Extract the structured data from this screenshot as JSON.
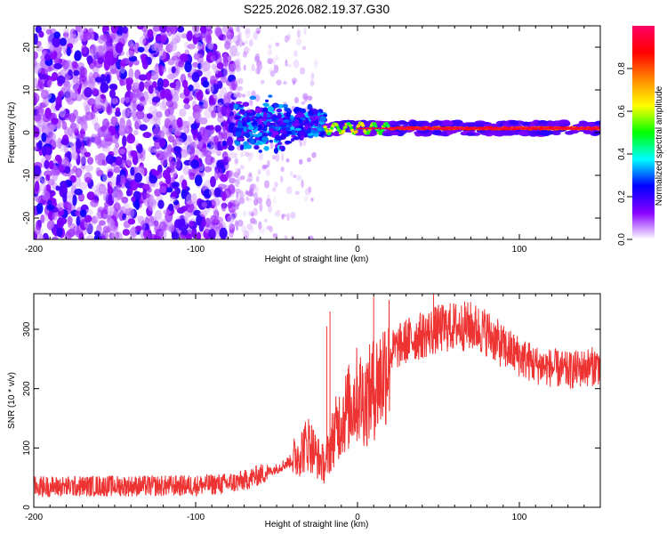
{
  "title": "S225.2026.082.19.37.G30",
  "chart_data": [
    {
      "type": "heatmap",
      "name": "spectrogram",
      "xlabel": "Height of straight line (km)",
      "ylabel": "Frequency (Hz)",
      "xlim": [
        -200,
        150
      ],
      "ylim": [
        -25,
        25
      ],
      "xticks": [
        -200,
        -100,
        0,
        100
      ],
      "yticks": [
        -20,
        -10,
        0,
        10,
        20
      ],
      "colorbar": {
        "label": "Normalized spectral amplitude",
        "range": [
          0,
          1
        ],
        "ticks": [
          "0.0",
          "0.2",
          "0.4",
          "0.6",
          "0.8"
        ],
        "tick_values": [
          0.0,
          0.2,
          0.4,
          0.6,
          0.8
        ],
        "colors": [
          "#ffffff",
          "#8800ff",
          "#0000ff",
          "#00ffff",
          "#00ff00",
          "#ffff00",
          "#ff8800",
          "#ff0000",
          "#ff0066"
        ]
      },
      "regions": [
        {
          "name": "noise",
          "x_range": [
            -200,
            -75
          ],
          "freq_range": [
            -25,
            25
          ],
          "amplitude": 0.1
        },
        {
          "name": "sparse-noise",
          "x_range": [
            -75,
            -25
          ],
          "freq_range": [
            -25,
            25
          ],
          "amplitude": 0.05
        },
        {
          "name": "onset",
          "x_range": [
            -75,
            -20
          ],
          "freq_center": 2,
          "freq_spread": 6,
          "amplitude": 0.3
        },
        {
          "name": "signal",
          "x_range": [
            -20,
            150
          ],
          "freq_center": 1,
          "freq_spread": 1,
          "amplitude": 0.9
        }
      ]
    },
    {
      "type": "line",
      "name": "snr",
      "xlabel": "Height of straight line (km)",
      "ylabel": "SNR (10 * v/v)",
      "xlim": [
        -200,
        150
      ],
      "ylim": [
        0,
        360
      ],
      "xticks": [
        -200,
        -100,
        0,
        100
      ],
      "yticks": [
        0,
        100,
        200,
        300
      ],
      "color": "#ee3333",
      "series": [
        {
          "name": "SNR",
          "x": [
            -200,
            -180,
            -160,
            -140,
            -120,
            -100,
            -80,
            -70,
            -60,
            -50,
            -40,
            -35,
            -30,
            -25,
            -20,
            -15,
            -10,
            -5,
            0,
            5,
            10,
            15,
            20,
            30,
            40,
            50,
            60,
            70,
            80,
            90,
            100,
            110,
            120,
            130,
            140,
            150
          ],
          "values": [
            35,
            35,
            36,
            36,
            36,
            37,
            40,
            45,
            55,
            65,
            80,
            95,
            110,
            85,
            70,
            120,
            150,
            170,
            190,
            180,
            200,
            220,
            260,
            280,
            290,
            300,
            305,
            305,
            295,
            270,
            255,
            240,
            235,
            230,
            235,
            240
          ]
        }
      ],
      "spikes": [
        {
          "x": -19,
          "y": 305
        },
        {
          "x": -17,
          "y": 330
        },
        {
          "x": 10,
          "y": 355
        },
        {
          "x": 47,
          "y": 360
        }
      ]
    }
  ]
}
